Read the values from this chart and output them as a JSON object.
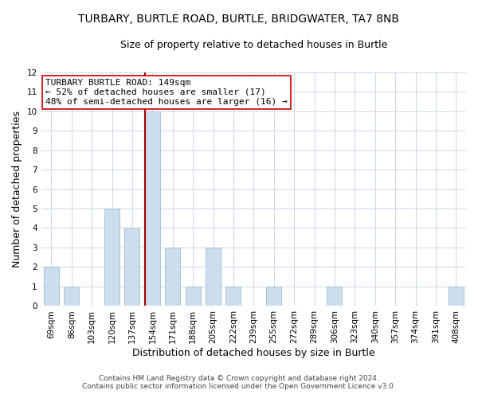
{
  "title": "TURBARY, BURTLE ROAD, BURTLE, BRIDGWATER, TA7 8NB",
  "subtitle": "Size of property relative to detached houses in Burtle",
  "xlabel": "Distribution of detached houses by size in Burtle",
  "ylabel": "Number of detached properties",
  "footnote1": "Contains HM Land Registry data © Crown copyright and database right 2024.",
  "footnote2": "Contains public sector information licensed under the Open Government Licence v3.0.",
  "bin_labels": [
    "69sqm",
    "86sqm",
    "103sqm",
    "120sqm",
    "137sqm",
    "154sqm",
    "171sqm",
    "188sqm",
    "205sqm",
    "222sqm",
    "239sqm",
    "255sqm",
    "272sqm",
    "289sqm",
    "306sqm",
    "323sqm",
    "340sqm",
    "357sqm",
    "374sqm",
    "391sqm",
    "408sqm"
  ],
  "counts": [
    2,
    1,
    0,
    5,
    4,
    10,
    3,
    1,
    3,
    1,
    0,
    1,
    0,
    0,
    1,
    0,
    0,
    0,
    0,
    0,
    1
  ],
  "bar_color": "#ccdded",
  "bar_edge_color": "#a8c4d8",
  "property_size_idx": 5,
  "vline_color": "#aa0000",
  "annotation_line1": "TURBARY BURTLE ROAD: 149sqm",
  "annotation_line2": "← 52% of detached houses are smaller (17)",
  "annotation_line3": "48% of semi-detached houses are larger (16) →",
  "annotation_box_edge": "#cc0000",
  "ylim": [
    0,
    12
  ],
  "yticks": [
    0,
    1,
    2,
    3,
    4,
    5,
    6,
    7,
    8,
    9,
    10,
    11,
    12
  ],
  "background_color": "#ffffff",
  "grid_color": "#ccd8e8",
  "title_fontsize": 10,
  "subtitle_fontsize": 9,
  "axis_label_fontsize": 9,
  "tick_fontsize": 7.5,
  "annotation_fontsize": 8,
  "footnote_fontsize": 6.5
}
